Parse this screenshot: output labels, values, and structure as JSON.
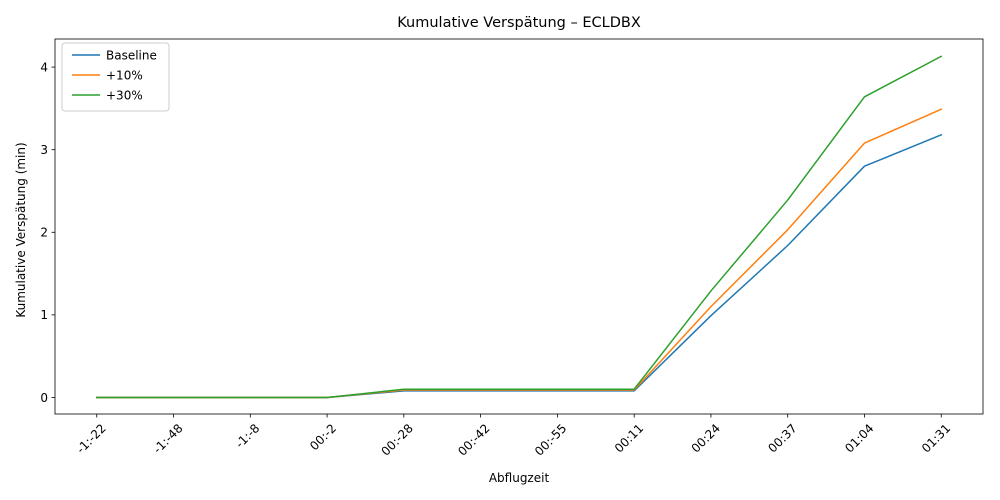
{
  "chart_data": {
    "type": "line",
    "title": "Kumulative Verspätung – ECLDBX",
    "xlabel": "Abflugzeit",
    "ylabel": "Kumulative Verspätung (min)",
    "categories": [
      "-1:-22",
      "-1:-48",
      "-1:-8",
      "00:-2",
      "00:-28",
      "00:-42",
      "00:-55",
      "00:11",
      "00:24",
      "00:37",
      "01:04",
      "01:31"
    ],
    "ylim": [
      -0.2,
      4.34
    ],
    "yticks": [
      0,
      1,
      2,
      3,
      4
    ],
    "grid": false,
    "legend_position": "top-left",
    "series": [
      {
        "name": "Baseline",
        "color": "#1f77b4",
        "values": [
          0,
          0,
          0,
          0,
          0.08,
          0.08,
          0.08,
          0.08,
          0.99,
          1.84,
          2.8,
          3.18
        ]
      },
      {
        "name": "+10%",
        "color": "#ff7f0e",
        "values": [
          0,
          0,
          0,
          0,
          0.09,
          0.09,
          0.09,
          0.09,
          1.1,
          2.03,
          3.08,
          3.49
        ]
      },
      {
        "name": "+30%",
        "color": "#2ca02c",
        "values": [
          0,
          0,
          0,
          0,
          0.1,
          0.1,
          0.1,
          0.1,
          1.29,
          2.39,
          3.64,
          4.13
        ]
      }
    ]
  }
}
